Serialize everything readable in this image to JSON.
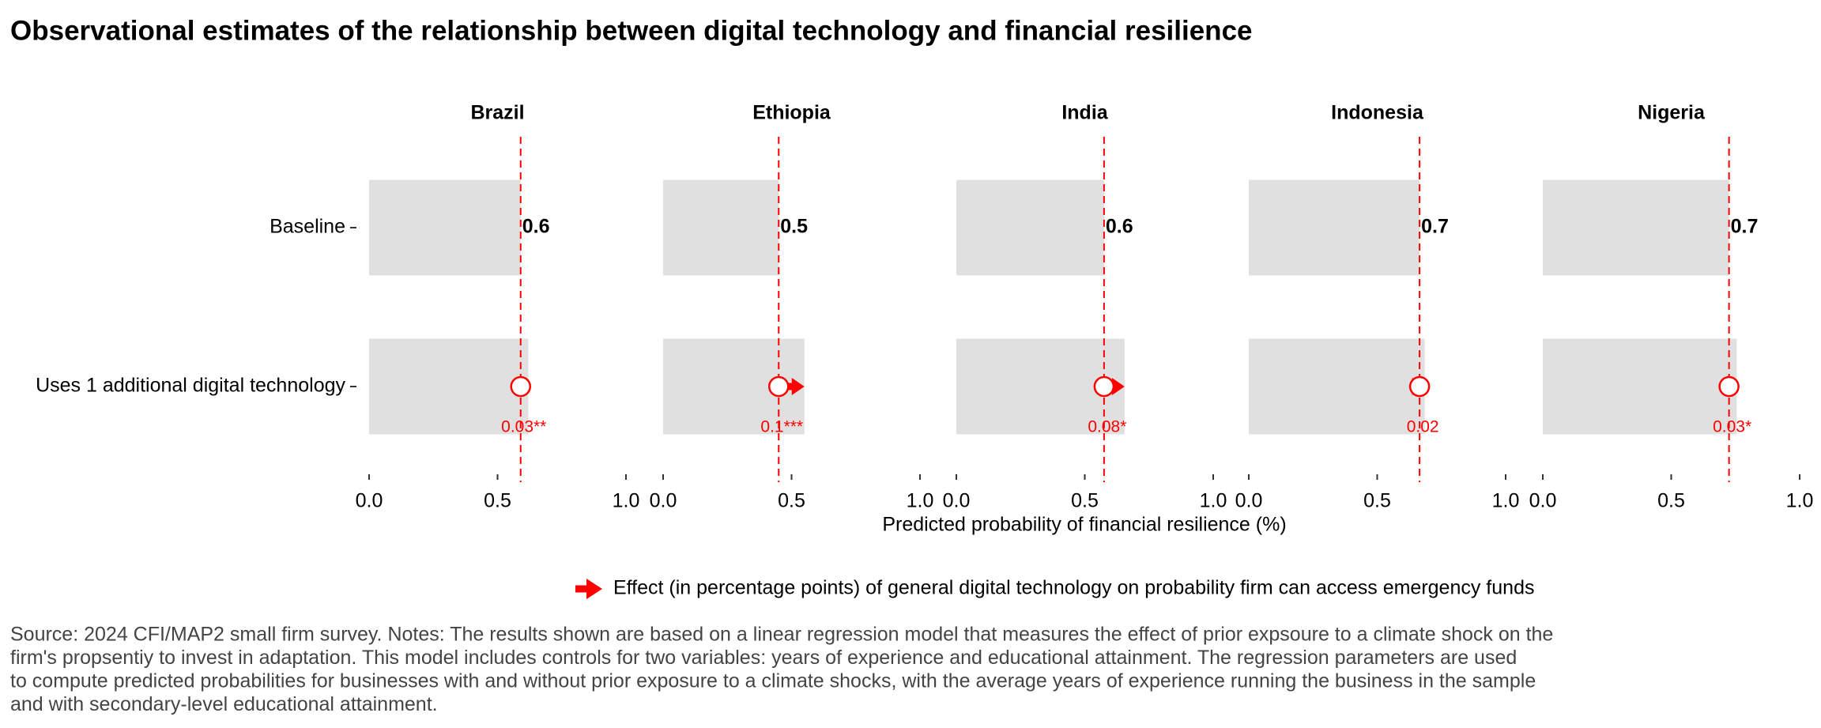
{
  "title": "Observational estimates of the relationship between digital technology and financial resilience",
  "categories": [
    "Baseline",
    "Uses 1 additional digital technology"
  ],
  "xlabel": "Predicted probability of financial resilience (%)",
  "legend": "Effect (in percentage points) of general digital technology on probability firm can access emergency funds",
  "note": [
    "Source: 2024 CFI/MAP2 small firm survey. Notes: The results shown are based on a linear regression model that measures the effect of prior expsoure to a climate shock on the",
    "firm's propsentiy to invest in adaptation. This model includes controls for two variables: years of experience and educational attainment. The regression parameters are used",
    "to compute predicted probabilities for businesses with and without prior exposure to a climate shocks, with the average years of experience running the business in the sample",
    "and with secondary-level educational attainment."
  ],
  "bar_color": "#e0e0e0",
  "effect_color": "#ff0000",
  "chart_data": [
    {
      "type": "bar",
      "title": "Brazil",
      "values": [
        0.59,
        0.62
      ],
      "baseline_label": "0.6",
      "effect": 0.03,
      "effect_label": "0.03**",
      "xlim": [
        0,
        1
      ],
      "xticks": [
        {
          "value": 0,
          "label": "0.0"
        },
        {
          "value": 0.5,
          "label": "0.5"
        },
        {
          "value": 1,
          "label": "1.0"
        }
      ]
    },
    {
      "type": "bar",
      "title": "Ethiopia",
      "values": [
        0.45,
        0.55
      ],
      "baseline_label": "0.5",
      "effect": 0.1,
      "effect_label": "0.1***",
      "xlim": [
        0,
        1
      ],
      "xticks": [
        {
          "value": 0,
          "label": "0.0"
        },
        {
          "value": 0.5,
          "label": "0.5"
        },
        {
          "value": 1,
          "label": "1.0"
        }
      ]
    },
    {
      "type": "bar",
      "title": "India",
      "values": [
        0.575,
        0.655
      ],
      "baseline_label": "0.6",
      "effect": 0.08,
      "effect_label": "0.08*",
      "xlim": [
        0,
        1
      ],
      "xticks": [
        {
          "value": 0,
          "label": "0.0"
        },
        {
          "value": 0.5,
          "label": "0.5"
        },
        {
          "value": 1,
          "label": "1.0"
        }
      ]
    },
    {
      "type": "bar",
      "title": "Indonesia",
      "values": [
        0.665,
        0.685
      ],
      "baseline_label": "0.7",
      "effect": 0.02,
      "effect_label": "0.02",
      "xlim": [
        0,
        1
      ],
      "xticks": [
        {
          "value": 0,
          "label": "0.0"
        },
        {
          "value": 0.5,
          "label": "0.5"
        },
        {
          "value": 1,
          "label": "1.0"
        }
      ]
    },
    {
      "type": "bar",
      "title": "Nigeria",
      "values": [
        0.725,
        0.755
      ],
      "baseline_label": "0.7",
      "effect": 0.03,
      "effect_label": "0.03*",
      "xlim": [
        0,
        1
      ],
      "xticks": [
        {
          "value": 0,
          "label": "0.0"
        },
        {
          "value": 0.5,
          "label": "0.5"
        },
        {
          "value": 1,
          "label": "1.0"
        }
      ]
    }
  ]
}
